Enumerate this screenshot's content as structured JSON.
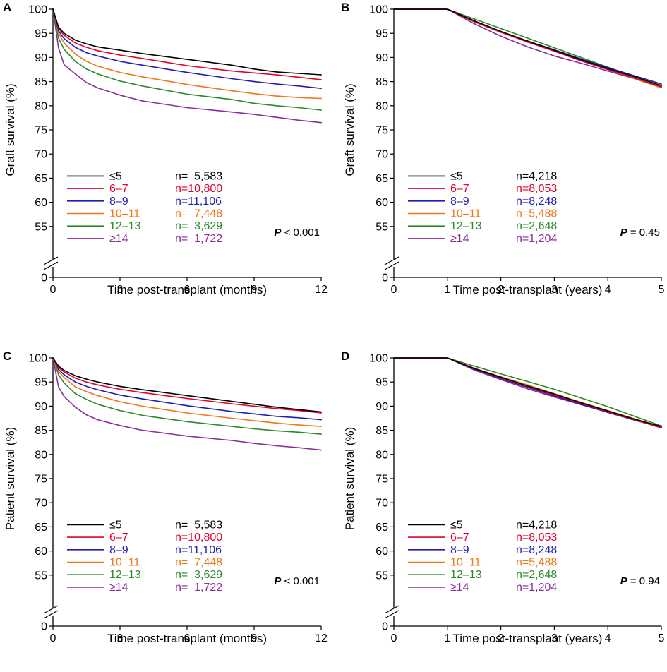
{
  "chart_data": [
    {
      "panel": "A",
      "type": "line",
      "xlabel": "Time post-transplant (months)",
      "ylabel": "Graft survival (%)",
      "xlim": [
        0,
        12
      ],
      "xticks": [
        0,
        3,
        6,
        9,
        12
      ],
      "ylim": [
        50,
        100
      ],
      "yticks": [
        55,
        60,
        65,
        70,
        75,
        80,
        85,
        90,
        95,
        100
      ],
      "y_axis_break_label": "0",
      "pvalue_label": "P",
      "pvalue_text": " < 0.001",
      "x": [
        0,
        0.25,
        0.5,
        1,
        1.5,
        2,
        3,
        4,
        6,
        8,
        9,
        10,
        11,
        12
      ],
      "series": [
        {
          "name": "≤5",
          "n": "n=  5,583",
          "color": "#000000",
          "values": [
            100,
            96.3,
            95.0,
            93.6,
            92.8,
            92.2,
            91.5,
            90.8,
            89.6,
            88.4,
            87.6,
            87.0,
            86.7,
            86.4
          ]
        },
        {
          "name": "6–7",
          "n": "n=10,800",
          "color": "#e4002b",
          "values": [
            100,
            96.0,
            94.6,
            93.0,
            92.1,
            91.4,
            90.5,
            89.8,
            88.3,
            87.2,
            86.8,
            86.4,
            85.9,
            85.4
          ]
        },
        {
          "name": "8–9",
          "n": "n=11,106",
          "color": "#1f1fb4",
          "values": [
            100,
            95.5,
            93.9,
            92.1,
            91.0,
            90.3,
            89.2,
            88.4,
            86.9,
            85.6,
            85.0,
            84.5,
            84.1,
            83.6
          ]
        },
        {
          "name": "10–11",
          "n": "n=  7,448",
          "color": "#f07818",
          "values": [
            100,
            95.0,
            93.0,
            90.7,
            89.2,
            88.2,
            86.9,
            86.0,
            84.4,
            83.1,
            82.5,
            82.0,
            81.7,
            81.5
          ]
        },
        {
          "name": "12–13",
          "n": "n=  3,629",
          "color": "#2a8a2a",
          "values": [
            100,
            94.0,
            91.7,
            89.2,
            87.6,
            86.6,
            85.1,
            84.1,
            82.4,
            81.3,
            80.5,
            80.0,
            79.6,
            79.1
          ]
        },
        {
          "name": "≥14",
          "n": "n=  1,722",
          "color": "#8b2c9c",
          "values": [
            100,
            92.0,
            88.5,
            86.6,
            84.8,
            83.7,
            82.2,
            81.0,
            79.6,
            78.7,
            78.2,
            77.6,
            77.0,
            76.5
          ]
        }
      ]
    },
    {
      "panel": "B",
      "type": "line",
      "xlabel": "Time post-transplant (years)",
      "ylabel": "Graft survival (%)",
      "xlim": [
        0,
        5
      ],
      "xticks": [
        0,
        1,
        2,
        3,
        4,
        5
      ],
      "ylim": [
        50,
        100
      ],
      "yticks": [
        55,
        60,
        65,
        70,
        75,
        80,
        85,
        90,
        95,
        100
      ],
      "y_axis_break_label": "0",
      "pvalue_label": "P",
      "pvalue_text": " = 0.45",
      "x": [
        0,
        1,
        1.5,
        2,
        2.5,
        3,
        3.5,
        4,
        4.5,
        5
      ],
      "series": [
        {
          "name": "≤5",
          "n": "n=4,218",
          "color": "#000000",
          "values": [
            100,
            100,
            97.6,
            95.4,
            93.4,
            91.5,
            89.5,
            87.7,
            86.0,
            84.2
          ]
        },
        {
          "name": "6–7",
          "n": "n=8,053",
          "color": "#e4002b",
          "values": [
            100,
            100,
            97.4,
            95.2,
            93.2,
            91.3,
            89.3,
            87.5,
            85.7,
            83.9
          ]
        },
        {
          "name": "8–9",
          "n": "n=8,248",
          "color": "#1f1fb4",
          "values": [
            100,
            100,
            97.5,
            95.3,
            93.4,
            91.6,
            89.7,
            87.9,
            86.2,
            84.5
          ]
        },
        {
          "name": "10–11",
          "n": "n=5,488",
          "color": "#f07818",
          "values": [
            100,
            100,
            97.6,
            95.3,
            93.2,
            91.3,
            89.4,
            87.5,
            85.6,
            83.7
          ]
        },
        {
          "name": "12–13",
          "n": "n=2,648",
          "color": "#2a8a2a",
          "values": [
            100,
            100,
            98.0,
            96.0,
            94.0,
            92.0,
            90.0,
            88.0,
            86.0,
            84.0
          ]
        },
        {
          "name": "≥14",
          "n": "n=1,204",
          "color": "#8b2c9c",
          "values": [
            100,
            100,
            97.0,
            94.4,
            92.2,
            90.3,
            88.8,
            87.2,
            85.6,
            83.8
          ]
        }
      ]
    },
    {
      "panel": "C",
      "type": "line",
      "xlabel": "Time post-transplant (months)",
      "ylabel": "Patient survival (%)",
      "xlim": [
        0,
        12
      ],
      "xticks": [
        0,
        3,
        6,
        9,
        12
      ],
      "ylim": [
        50,
        100
      ],
      "yticks": [
        55,
        60,
        65,
        70,
        75,
        80,
        85,
        90,
        95,
        100
      ],
      "y_axis_break_label": "0",
      "pvalue_label": "P",
      "pvalue_text": " < 0.001",
      "x": [
        0,
        0.25,
        0.5,
        1,
        1.5,
        2,
        3,
        4,
        6,
        8,
        9,
        10,
        11,
        12
      ],
      "series": [
        {
          "name": "≤5",
          "n": "n=  5,583",
          "color": "#000000",
          "values": [
            100,
            98.3,
            97.4,
            96.3,
            95.6,
            95.0,
            94.1,
            93.4,
            92.2,
            91.0,
            90.4,
            89.8,
            89.3,
            88.8
          ]
        },
        {
          "name": "6–7",
          "n": "n=10,800",
          "color": "#e4002b",
          "values": [
            100,
            98.0,
            97.1,
            95.8,
            95.0,
            94.4,
            93.5,
            92.8,
            91.6,
            90.5,
            90.0,
            89.5,
            89.1,
            88.6
          ]
        },
        {
          "name": "8–9",
          "n": "n=11,106",
          "color": "#1f1fb4",
          "values": [
            100,
            97.6,
            96.5,
            95.0,
            94.1,
            93.4,
            92.3,
            91.5,
            90.1,
            88.9,
            88.4,
            87.9,
            87.6,
            87.2
          ]
        },
        {
          "name": "10–11",
          "n": "n=  7,448",
          "color": "#f07818",
          "values": [
            100,
            97.2,
            95.9,
            94.0,
            93.0,
            92.2,
            90.9,
            90.0,
            88.6,
            87.5,
            87.0,
            86.5,
            86.1,
            85.8
          ]
        },
        {
          "name": "12–13",
          "n": "n=  3,629",
          "color": "#2a8a2a",
          "values": [
            100,
            96.5,
            94.8,
            92.6,
            91.4,
            90.4,
            89.1,
            88.1,
            86.8,
            85.8,
            85.3,
            84.9,
            84.6,
            84.2
          ]
        },
        {
          "name": "≥14",
          "n": "n=  1,722",
          "color": "#8b2c9c",
          "values": [
            100,
            94.0,
            92.0,
            89.8,
            88.2,
            87.2,
            86.0,
            85.0,
            83.8,
            82.9,
            82.3,
            81.8,
            81.4,
            80.9
          ]
        }
      ]
    },
    {
      "panel": "D",
      "type": "line",
      "xlabel": "Time post-transplant (years)",
      "ylabel": "Patient survival (%)",
      "xlim": [
        0,
        5
      ],
      "xticks": [
        0,
        1,
        2,
        3,
        4,
        5
      ],
      "ylim": [
        50,
        100
      ],
      "yticks": [
        55,
        60,
        65,
        70,
        75,
        80,
        85,
        90,
        95,
        100
      ],
      "y_axis_break_label": "0",
      "pvalue_label": "P",
      "pvalue_text": " = 0.94",
      "x": [
        0,
        1,
        1.5,
        2,
        2.5,
        3,
        3.5,
        4,
        4.5,
        5
      ],
      "series": [
        {
          "name": "≤5",
          "n": "n=4,218",
          "color": "#000000",
          "values": [
            100,
            100,
            97.8,
            96.0,
            94.2,
            92.5,
            90.7,
            89.0,
            87.3,
            85.8
          ]
        },
        {
          "name": "6–7",
          "n": "n=8,053",
          "color": "#e4002b",
          "values": [
            100,
            100,
            97.8,
            95.9,
            94.1,
            92.3,
            90.6,
            88.8,
            87.2,
            85.5
          ]
        },
        {
          "name": "8–9",
          "n": "n=8,248",
          "color": "#1f1fb4",
          "values": [
            100,
            100,
            97.7,
            95.7,
            93.9,
            92.1,
            90.4,
            88.7,
            87.1,
            85.6
          ]
        },
        {
          "name": "10–11",
          "n": "n=5,488",
          "color": "#f07818",
          "values": [
            100,
            100,
            97.9,
            96.1,
            94.4,
            92.6,
            90.8,
            89.1,
            87.4,
            85.7
          ]
        },
        {
          "name": "12–13",
          "n": "n=2,648",
          "color": "#2a8a2a",
          "values": [
            100,
            100,
            98.3,
            96.7,
            95.1,
            93.5,
            91.7,
            89.9,
            87.9,
            85.9
          ]
        },
        {
          "name": "≥14",
          "n": "n=1,204",
          "color": "#8b2c9c",
          "values": [
            100,
            100,
            97.5,
            95.5,
            93.6,
            91.9,
            90.3,
            88.8,
            87.3,
            85.7
          ]
        }
      ]
    }
  ]
}
